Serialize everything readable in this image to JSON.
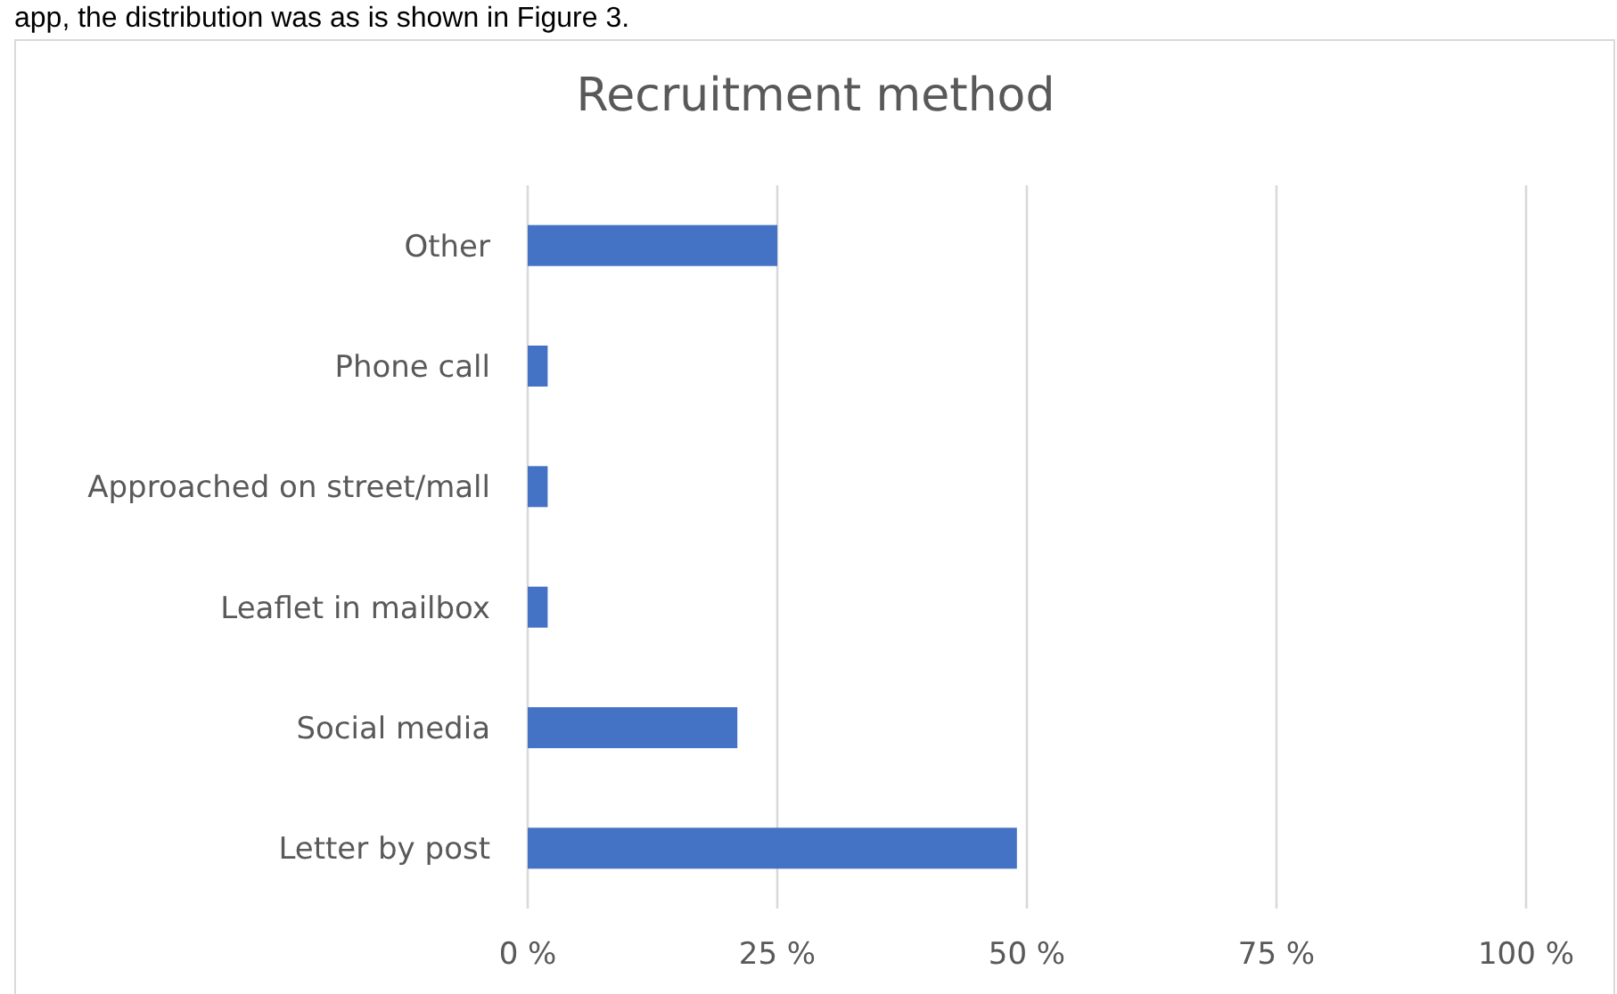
{
  "chart_data": {
    "type": "bar",
    "orientation": "horizontal",
    "title": "Recruitment method",
    "annotations": [
      "app, the distribution was as is shown in Figure 3."
    ],
    "categories": [
      "Other",
      "Phone call",
      "Approached on street/mall",
      "Leaflet in mailbox",
      "Social media",
      "Letter by post"
    ],
    "values": [
      25,
      2,
      2,
      2,
      21,
      49
    ],
    "color": "#4472c4",
    "xlim": [
      0,
      100
    ],
    "xticks": [
      {
        "value": 0,
        "label": "0 %"
      },
      {
        "value": 25,
        "label": "25 %"
      },
      {
        "value": 50,
        "label": "50 %"
      },
      {
        "value": 75,
        "label": "75 %"
      },
      {
        "value": 100,
        "label": "100 %"
      }
    ],
    "grid": "x"
  }
}
